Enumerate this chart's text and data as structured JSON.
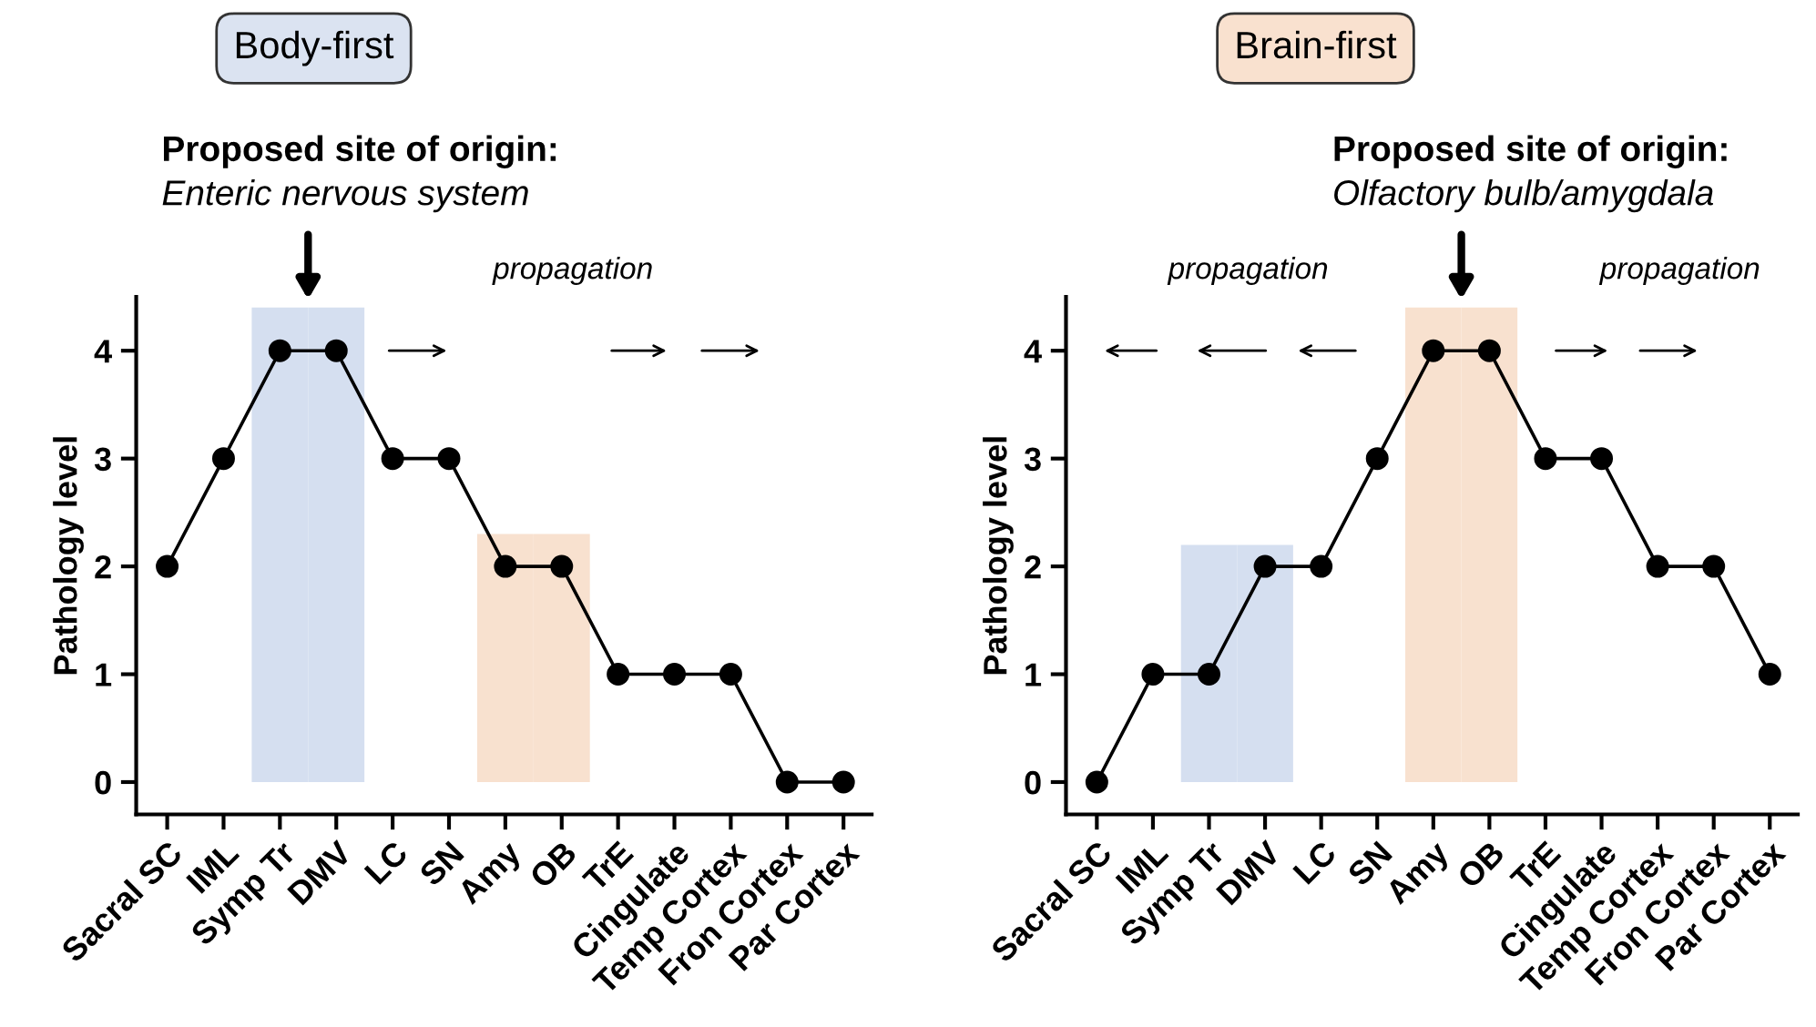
{
  "chart_data": [
    {
      "type": "line",
      "title": "Body-first",
      "ylabel": "Pathology level",
      "categories": [
        "Sacral SC",
        "IML",
        "Symp Tr",
        "DMV",
        "LC",
        "SN",
        "Amy",
        "OB",
        "TrE",
        "Cingulate",
        "Temp Cortex",
        "Fron Cortex",
        "Par Cortex"
      ],
      "series": [
        {
          "type": "bar",
          "color": "#d5dff0",
          "values": [
            null,
            null,
            4.4,
            4.4,
            null,
            null,
            null,
            null,
            null,
            null,
            null,
            null,
            null
          ]
        },
        {
          "type": "bar",
          "color": "#f8e1cf",
          "values": [
            null,
            null,
            null,
            null,
            null,
            null,
            2.3,
            2.3,
            null,
            null,
            null,
            null,
            null
          ]
        },
        {
          "color": "#000000",
          "values": [
            2,
            3,
            4,
            4,
            3,
            3,
            2,
            2,
            1,
            1,
            1,
            0,
            0
          ]
        }
      ],
      "ylim": [
        -0.3,
        4.5
      ],
      "yticks": [
        0,
        1,
        2,
        3,
        4
      ],
      "marker": "circle",
      "line_style": "solid",
      "annotations": [
        "Proposed site of origin:",
        "Enteric nervous system",
        "propagation"
      ]
    },
    {
      "type": "line",
      "title": "Brain-first",
      "ylabel": "Pathology level",
      "categories": [
        "Sacral SC",
        "IML",
        "Symp Tr",
        "DMV",
        "LC",
        "SN",
        "Amy",
        "OB",
        "TrE",
        "Cingulate",
        "Temp Cortex",
        "Fron Cortex",
        "Par Cortex"
      ],
      "series": [
        {
          "type": "bar",
          "color": "#d5dff0",
          "values": [
            null,
            null,
            2.2,
            2.2,
            null,
            null,
            null,
            null,
            null,
            null,
            null,
            null,
            null
          ]
        },
        {
          "type": "bar",
          "color": "#f8e1cf",
          "values": [
            null,
            null,
            null,
            null,
            null,
            null,
            4.4,
            4.4,
            null,
            null,
            null,
            null,
            null
          ]
        },
        {
          "color": "#000000",
          "values": [
            0,
            1,
            1,
            2,
            2,
            3,
            4,
            4,
            3,
            3,
            2,
            2,
            1
          ]
        }
      ],
      "ylim": [
        -0.3,
        4.5
      ],
      "yticks": [
        0,
        1,
        2,
        3,
        4
      ],
      "marker": "circle",
      "line_style": "solid",
      "annotations": [
        "Proposed site of origin:",
        "Olfactory bulb/amygdala",
        "propagation",
        "propagation"
      ]
    }
  ]
}
